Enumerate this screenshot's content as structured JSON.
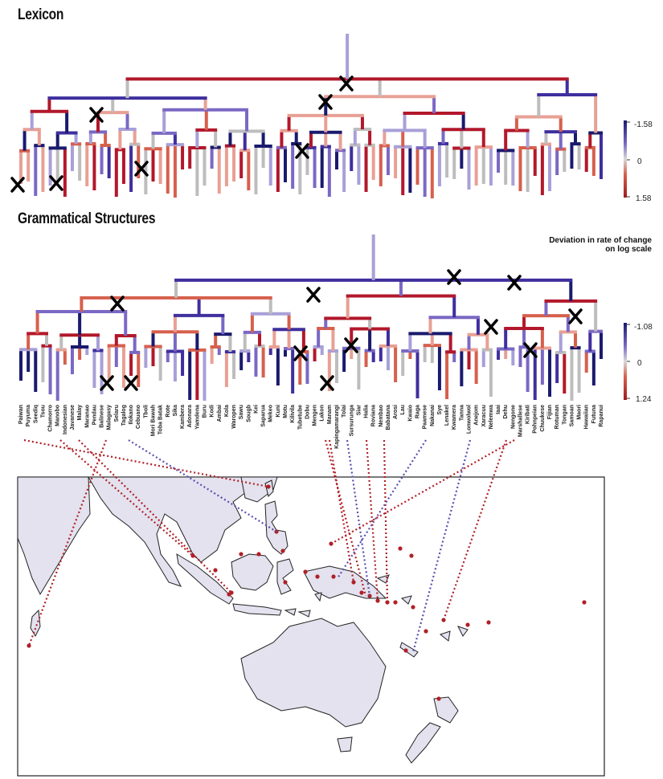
{
  "titles": {
    "lexicon": "Lexicon",
    "grammar": "Grammatical Structures"
  },
  "legend_note": "Deviation in rate of change on log scale",
  "scales": {
    "lexicon": {
      "top": "-1.58",
      "mid": "0",
      "bottom": "1.58"
    },
    "grammar": {
      "top": "-1.08",
      "mid": "0",
      "bottom": "1.24"
    }
  },
  "languages": [
    "Paiwan",
    "Puyuma",
    "Seediq",
    "Tsou",
    "Chamorro",
    "Manobo",
    "Indonesian",
    "Javanese",
    "Malay",
    "Maranao",
    "Pendau",
    "Balinese",
    "Malagasy",
    "Selaru",
    "Tagalog",
    "Ilokano",
    "Cebuano",
    "Tboli",
    "Mori Bawah",
    "Toba Batak",
    "Rote",
    "Sika",
    "Kambera",
    "Adonara",
    "Yamdena",
    "Buru",
    "Kodi",
    "Ambai",
    "Kola",
    "Waropen",
    "Sawu",
    "Sougb",
    "Kei",
    "Saparua",
    "Mekeo",
    "Kuni",
    "Motu",
    "Kilivila",
    "Tubetube",
    "Dobu",
    "Mengen",
    "Lakon",
    "Manam",
    "Kapingamarangi",
    "Tolai",
    "Sursurunga",
    "Siar",
    "Halia",
    "Roviana",
    "Nembao",
    "Babatana",
    "Arosi",
    "Lau",
    "Kwaio",
    "Raga",
    "Paamese",
    "Nakanai",
    "Sye",
    "Lenakel",
    "Kwamera",
    "Tanna",
    "Lonwolwol",
    "Anejom",
    "Xaracuu",
    "Nelemwa",
    "Iaai",
    "Dehu",
    "Nengone",
    "Marshallese",
    "Kiribati",
    "Pohnpeian",
    "Chuukese",
    "Fijian",
    "Rotuman",
    "Tongan",
    "Samoan",
    "Maori",
    "Hawaiian",
    "Futuna",
    "Rapanui"
  ],
  "map_labels": {
    "note": ""
  },
  "colors": {
    "strong_red": "#b2182b",
    "mid_red": "#d6604d",
    "light_red": "#e8a094",
    "neutral": "#bdbdbd",
    "light_purple": "#a8a0d8",
    "mid_purple": "#7b68c4",
    "strong_purple": "#3f2f9e",
    "dark_navy": "#1a1a6e",
    "land": "#e3e2ee",
    "connector_red": "#b02028",
    "connector_purple": "#5a4fb0"
  }
}
